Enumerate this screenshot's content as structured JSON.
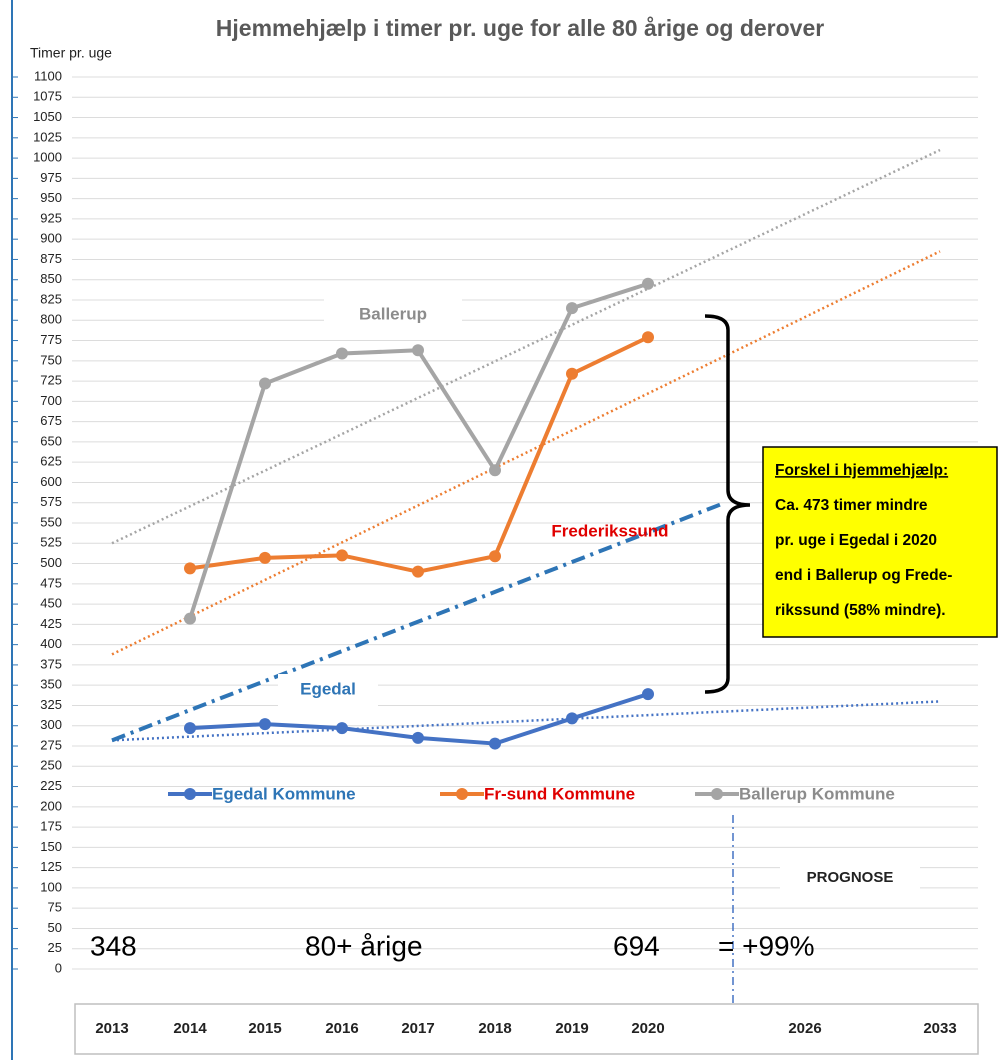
{
  "chart_data": {
    "type": "line",
    "title": "Hjemmehjælp i timer pr. uge for alle 80 årige og derover",
    "y_label": "Timer pr. uge",
    "categories": [
      "2013",
      "2014",
      "2015",
      "2016",
      "2017",
      "2018",
      "2019",
      "2020",
      null,
      "2026",
      "2033"
    ],
    "series": [
      {
        "name": "Egedal Kommune",
        "color": "#4472c4",
        "values": [
          null,
          297,
          302,
          297,
          285,
          278,
          309,
          339,
          null,
          null,
          null
        ]
      },
      {
        "name": "Fr-sund Kommune",
        "color": "#ed7d31",
        "values": [
          null,
          494,
          507,
          510,
          490,
          509,
          734,
          779,
          null,
          null,
          null
        ]
      },
      {
        "name": "Ballerup Kommune",
        "color": "#a5a5a5",
        "values": [
          null,
          432,
          722,
          759,
          763,
          615,
          815,
          845,
          null,
          null,
          null
        ]
      }
    ],
    "trendlines": [
      {
        "color": "#a5a5a5",
        "dash": "dotted",
        "values": [
          525,
          null,
          null,
          null,
          null,
          null,
          null,
          null,
          null,
          null,
          1010
        ]
      },
      {
        "color": "#ed7d31",
        "dash": "dotted",
        "values": [
          388,
          null,
          null,
          null,
          null,
          null,
          null,
          null,
          null,
          null,
          885
        ]
      },
      {
        "color": "#4472c4",
        "dash": "dotted",
        "values": [
          282,
          null,
          null,
          null,
          null,
          null,
          null,
          null,
          null,
          null,
          330
        ]
      },
      {
        "color": "#2e75b6",
        "dash": "dashdot",
        "values": [
          282,
          null,
          null,
          null,
          null,
          null,
          null,
          null,
          575,
          null,
          null
        ]
      }
    ],
    "ylim": [
      0,
      1100
    ],
    "yticks": [
      0,
      25,
      50,
      75,
      100,
      125,
      150,
      175,
      200,
      225,
      250,
      275,
      300,
      325,
      350,
      375,
      400,
      425,
      450,
      475,
      500,
      525,
      550,
      575,
      600,
      625,
      650,
      675,
      700,
      725,
      750,
      775,
      800,
      825,
      850,
      875,
      900,
      925,
      950,
      975,
      1000,
      1025,
      1050,
      1075,
      1100
    ],
    "grid": true,
    "legend": "bottom",
    "labels": {
      "ballerup": "Ballerup",
      "frederikssund": "Frederikssund",
      "egedal": "Egedal",
      "prognose": "PROGNOSE"
    },
    "box_text": [
      "Forskel i hjemmehjælp:",
      "Ca. 473 timer mindre",
      "pr. uge i Egedal i 2020",
      "end i Ballerup og Frede-",
      "rikssund (58% mindre)."
    ],
    "bottom_text": [
      "348",
      "80+ årige",
      "694",
      "= +99%"
    ]
  }
}
